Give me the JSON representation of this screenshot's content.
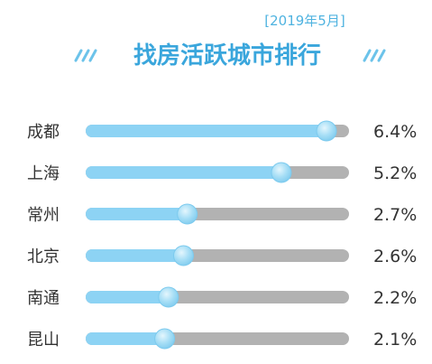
{
  "chart_data": {
    "type": "bar",
    "subtitle": "[2019年5月]",
    "title": "找房活跃城市排行",
    "categories": [
      "成都",
      "上海",
      "常州",
      "北京",
      "南通",
      "昆山"
    ],
    "values": [
      6.4,
      5.2,
      2.7,
      2.6,
      2.2,
      2.1
    ],
    "value_labels": [
      "6.4%",
      "5.2%",
      "2.7%",
      "2.6%",
      "2.2%",
      "2.1%"
    ],
    "colors": {
      "fill": "#8dd3f4",
      "track": "#b2b2b2",
      "knob": "#9fdcf6",
      "accent": "#3aa6dc"
    }
  }
}
